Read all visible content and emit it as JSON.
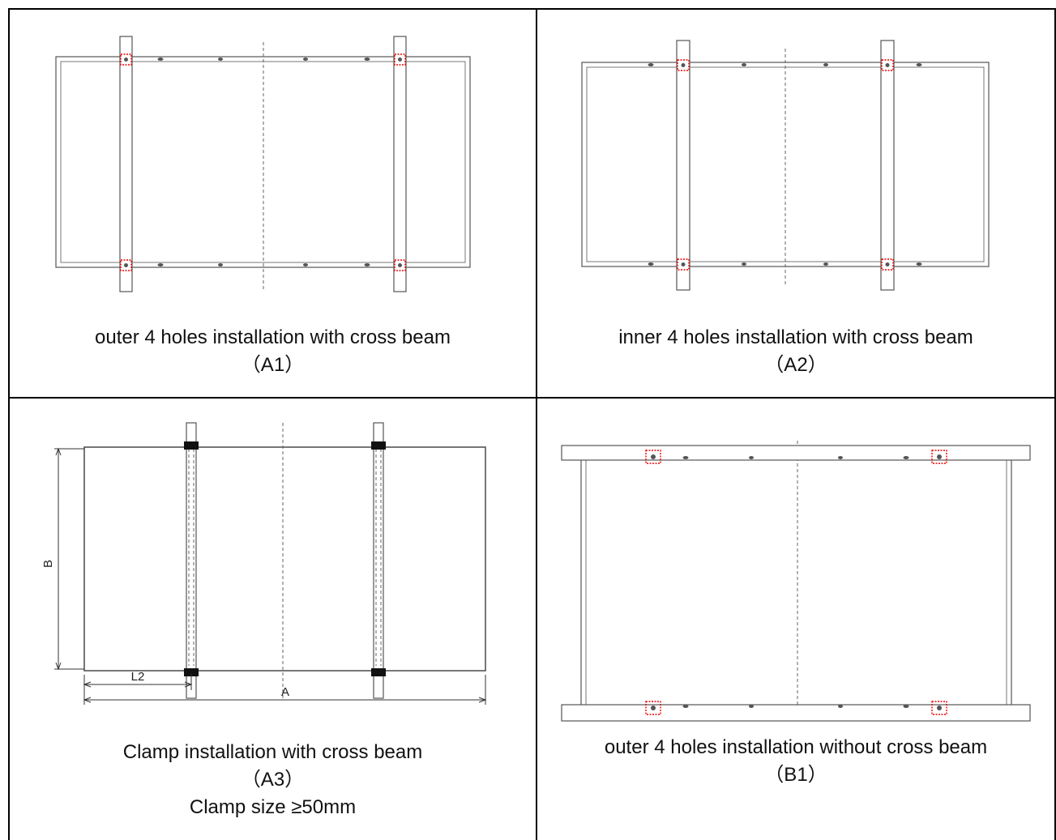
{
  "panels": [
    {
      "id": "A1",
      "caption": "outer 4 holes installation with cross beam",
      "code": "（A1）"
    },
    {
      "id": "A2",
      "caption": "inner 4 holes installation with cross beam",
      "code": "（A2）"
    },
    {
      "id": "A3",
      "caption": "Clamp installation with cross beam",
      "code": "（A3）",
      "note": "Clamp size ≥50mm",
      "dimensions": {
        "width_label": "A",
        "height_label": "B",
        "offset_label": "L2"
      }
    },
    {
      "id": "B1",
      "caption": "outer 4 holes installation without cross beam",
      "code": "（B1）"
    }
  ],
  "colors": {
    "frame": "#555555",
    "mount_marker": "#e00000",
    "clamp": "#111111",
    "border": "#000000"
  }
}
